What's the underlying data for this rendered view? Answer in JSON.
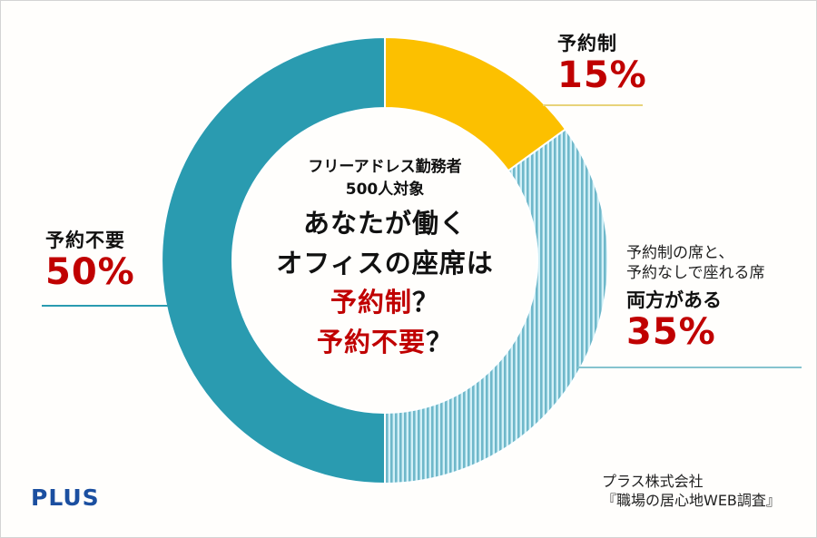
{
  "chart_data": {
    "type": "pie",
    "subtype": "donut",
    "title": "あなたが働くオフィスの座席は予約制？予約不要？",
    "subtitle": "フリーアドレス勤務者 500人対象",
    "categories": [
      "予約制",
      "予約制の席と、予約なしで座れる席 両方がある",
      "予約不要"
    ],
    "values": [
      15,
      35,
      50
    ],
    "unit": "%",
    "colors": [
      "#fcc000",
      "#7fc3d3",
      "#2a9bb0"
    ],
    "legend": "direct labels",
    "start_angle": "12 o'clock, clockwise"
  },
  "center": {
    "line1": "フリーアドレス勤務者",
    "line2": "500人対象",
    "q1": "あなたが働く",
    "q2": "オフィスの座席は",
    "q3_red": "予約制",
    "q3_mark": "？",
    "q4_red": "予約不要",
    "q4_mark": "？"
  },
  "labels": {
    "reserved": {
      "category": "予約制",
      "percent": "15%"
    },
    "both": {
      "line1": "予約制の席と、",
      "line2": "予約なしで座れる席",
      "category": "両方がある",
      "percent": "35%"
    },
    "unreserved": {
      "category": "予約不要",
      "percent": "50%"
    }
  },
  "source": {
    "line1": "プラス株式会社",
    "line2": "『職場の居心地WEB調査』"
  },
  "logo": "PLUS",
  "colors": {
    "accent_red": "#c00000",
    "teal": "#2a9bb0",
    "yellow": "#fcc000",
    "stripe_light": "#c9ecf5",
    "stripe_dark": "#6fb8ca",
    "logo_blue": "#1b4fa0"
  }
}
